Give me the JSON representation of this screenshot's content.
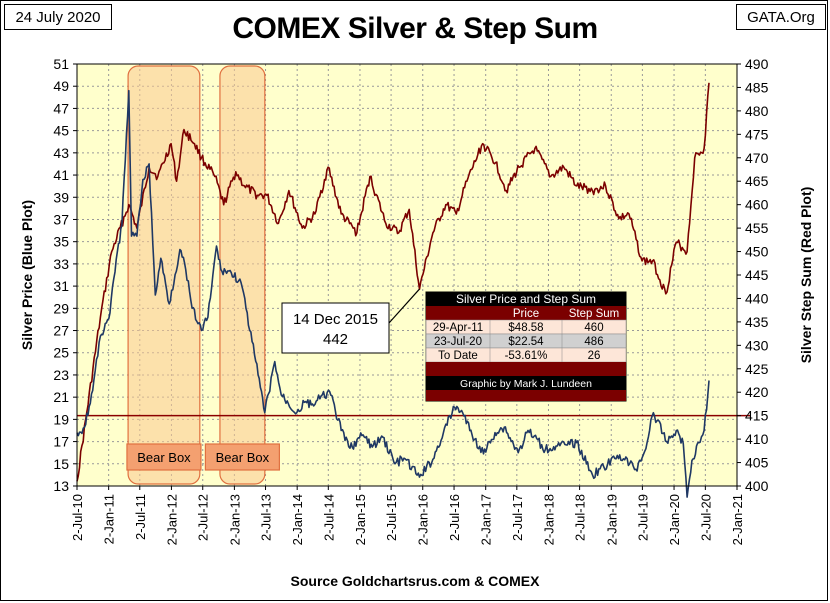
{
  "header": {
    "date": "24 July 2020",
    "title": "COMEX Silver & Step Sum",
    "site": "GATA.Org"
  },
  "footer": {
    "source": "Source Goldchartsrus.com & COMEX"
  },
  "chart_data": {
    "type": "line",
    "title": "COMEX Silver & Step Sum",
    "ylabel": "Silver Price (Blue Plot)",
    "y2label": "Silver Step Sum (Red Plot)",
    "ylim": [
      13,
      51
    ],
    "y2lim": [
      400,
      490
    ],
    "yticks": [
      13,
      15,
      17,
      19,
      21,
      23,
      25,
      27,
      29,
      31,
      33,
      35,
      37,
      39,
      41,
      43,
      45,
      47,
      49,
      51
    ],
    "y2ticks": [
      400,
      405,
      410,
      415,
      420,
      425,
      430,
      435,
      440,
      445,
      450,
      455,
      460,
      465,
      470,
      475,
      480,
      485,
      490
    ],
    "xticks": [
      "2-Jul-10",
      "2-Jan-11",
      "2-Jul-11",
      "2-Jan-12",
      "2-Jul-12",
      "2-Jan-13",
      "2-Jul-13",
      "2-Jan-14",
      "2-Jul-14",
      "2-Jan-15",
      "2-Jul-15",
      "2-Jan-16",
      "2-Jul-16",
      "2-Jan-17",
      "2-Jul-17",
      "2-Jan-18",
      "2-Jul-18",
      "2-Jan-19",
      "2-Jul-19",
      "2-Jan-20",
      "2-Jul-20",
      "2-Jan-21"
    ],
    "grid": true,
    "colors": {
      "plot_bg": "#ffffcc",
      "price": "#1f3864",
      "step": "#7b0000",
      "ref_line": "#8b0000",
      "box": "#fac890",
      "box_edge": "#e07040",
      "box_label_bg": "#f4a070",
      "table_head": "#7b0000"
    },
    "reference_line": {
      "axis": "y2",
      "value": 415
    },
    "series": [
      {
        "name": "Silver Price",
        "axis": "y",
        "x": [
          "2010-07-02",
          "2010-08-15",
          "2010-10-01",
          "2010-11-15",
          "2011-01-10",
          "2011-02-15",
          "2011-03-20",
          "2011-04-29",
          "2011-05-15",
          "2011-06-15",
          "2011-07-20",
          "2011-08-25",
          "2011-09-30",
          "2011-11-01",
          "2011-12-20",
          "2012-02-20",
          "2012-03-25",
          "2012-05-01",
          "2012-06-25",
          "2012-08-01",
          "2012-09-20",
          "2012-10-15",
          "2012-12-15",
          "2013-02-10",
          "2013-04-15",
          "2013-05-20",
          "2013-06-28",
          "2013-08-25",
          "2013-10-01",
          "2013-12-31",
          "2014-02-20",
          "2014-03-25",
          "2014-07-10",
          "2014-09-15",
          "2014-11-05",
          "2015-01-20",
          "2015-03-15",
          "2015-05-15",
          "2015-07-25",
          "2015-09-15",
          "2015-12-14",
          "2016-03-01",
          "2016-05-01",
          "2016-07-05",
          "2016-08-15",
          "2016-10-15",
          "2016-12-20",
          "2017-02-25",
          "2017-04-20",
          "2017-07-10",
          "2017-09-05",
          "2017-12-15",
          "2018-02-15",
          "2018-04-15",
          "2018-06-15",
          "2018-09-15",
          "2018-11-20",
          "2019-02-20",
          "2019-05-25",
          "2019-07-15",
          "2019-09-04",
          "2019-11-20",
          "2020-01-15",
          "2020-02-25",
          "2020-03-18",
          "2020-04-15",
          "2020-05-25",
          "2020-06-25",
          "2020-07-23"
        ],
        "values": [
          17.8,
          18.3,
          21.6,
          26.5,
          28.6,
          33.4,
          36.5,
          48.6,
          35.5,
          35.5,
          40.6,
          42.0,
          30.2,
          33.5,
          29.4,
          34.3,
          32.5,
          29.0,
          27.0,
          28.2,
          34.6,
          32.5,
          32.2,
          31.3,
          26.0,
          23.0,
          19.6,
          24.2,
          21.2,
          19.6,
          20.6,
          20.3,
          21.5,
          18.0,
          16.4,
          17.6,
          16.5,
          17.4,
          15.0,
          15.5,
          13.8,
          15.4,
          17.8,
          20.1,
          19.8,
          17.6,
          15.9,
          17.8,
          18.3,
          16.0,
          18.0,
          16.3,
          16.6,
          16.7,
          16.9,
          14.0,
          14.7,
          15.8,
          14.5,
          16.1,
          19.6,
          17.0,
          18.0,
          16.8,
          12.0,
          15.3,
          16.9,
          18.0,
          22.5
        ]
      },
      {
        "name": "Step Sum",
        "axis": "y2",
        "x": [
          "2010-07-02",
          "2010-11-15",
          "2011-01-20",
          "2011-04-29",
          "2011-06-15",
          "2011-08-25",
          "2011-10-15",
          "2011-12-31",
          "2012-02-01",
          "2012-03-15",
          "2012-05-15",
          "2012-06-25",
          "2012-09-10",
          "2012-11-01",
          "2013-01-10",
          "2013-03-01",
          "2013-05-15",
          "2013-07-10",
          "2013-09-15",
          "2013-11-15",
          "2014-02-01",
          "2014-04-15",
          "2014-07-01",
          "2014-09-15",
          "2014-12-15",
          "2015-03-01",
          "2015-06-01",
          "2015-08-15",
          "2015-10-15",
          "2015-12-14",
          "2016-03-01",
          "2016-05-15",
          "2016-07-15",
          "2016-09-15",
          "2016-12-15",
          "2017-03-01",
          "2017-05-01",
          "2017-07-15",
          "2017-10-15",
          "2018-01-15",
          "2018-04-01",
          "2018-06-15",
          "2018-09-15",
          "2018-11-30",
          "2019-02-15",
          "2019-04-15",
          "2019-06-30",
          "2019-08-30",
          "2019-11-15",
          "2020-01-15",
          "2020-03-18",
          "2020-05-01",
          "2020-06-25",
          "2020-07-23"
        ],
        "values": [
          401,
          436,
          450,
          460,
          455,
          468,
          466,
          473,
          465,
          476,
          473,
          470,
          466,
          460,
          467,
          464,
          462,
          462,
          456,
          463,
          455,
          458,
          468,
          458,
          454,
          466,
          456,
          454,
          459,
          442,
          454,
          460,
          458,
          465,
          473,
          469,
          463,
          468,
          472,
          466,
          468,
          464,
          463,
          464,
          457,
          458,
          448,
          448,
          441,
          452,
          450,
          470,
          472,
          486
        ]
      }
    ],
    "bear_boxes": [
      {
        "label": "Bear Box",
        "start": "2011-04-25",
        "end": "2012-06-15"
      },
      {
        "label": "Bear Box",
        "start": "2012-10-10",
        "end": "2013-06-28"
      }
    ],
    "annotation": {
      "lines": [
        "14 Dec 2015",
        "442"
      ],
      "x": "2015-12-14",
      "y2": 442
    },
    "table": {
      "title": "Silver Price and Step Sum",
      "columns": [
        "",
        "Price",
        "Step Sum"
      ],
      "rows": [
        [
          "29-Apr-11",
          "$48.58",
          "460"
        ],
        [
          "23-Jul-20",
          "$22.54",
          "486"
        ],
        [
          "To Date",
          "-53.61%",
          "26"
        ]
      ],
      "credit": "Graphic by Mark J. Lundeen"
    }
  }
}
